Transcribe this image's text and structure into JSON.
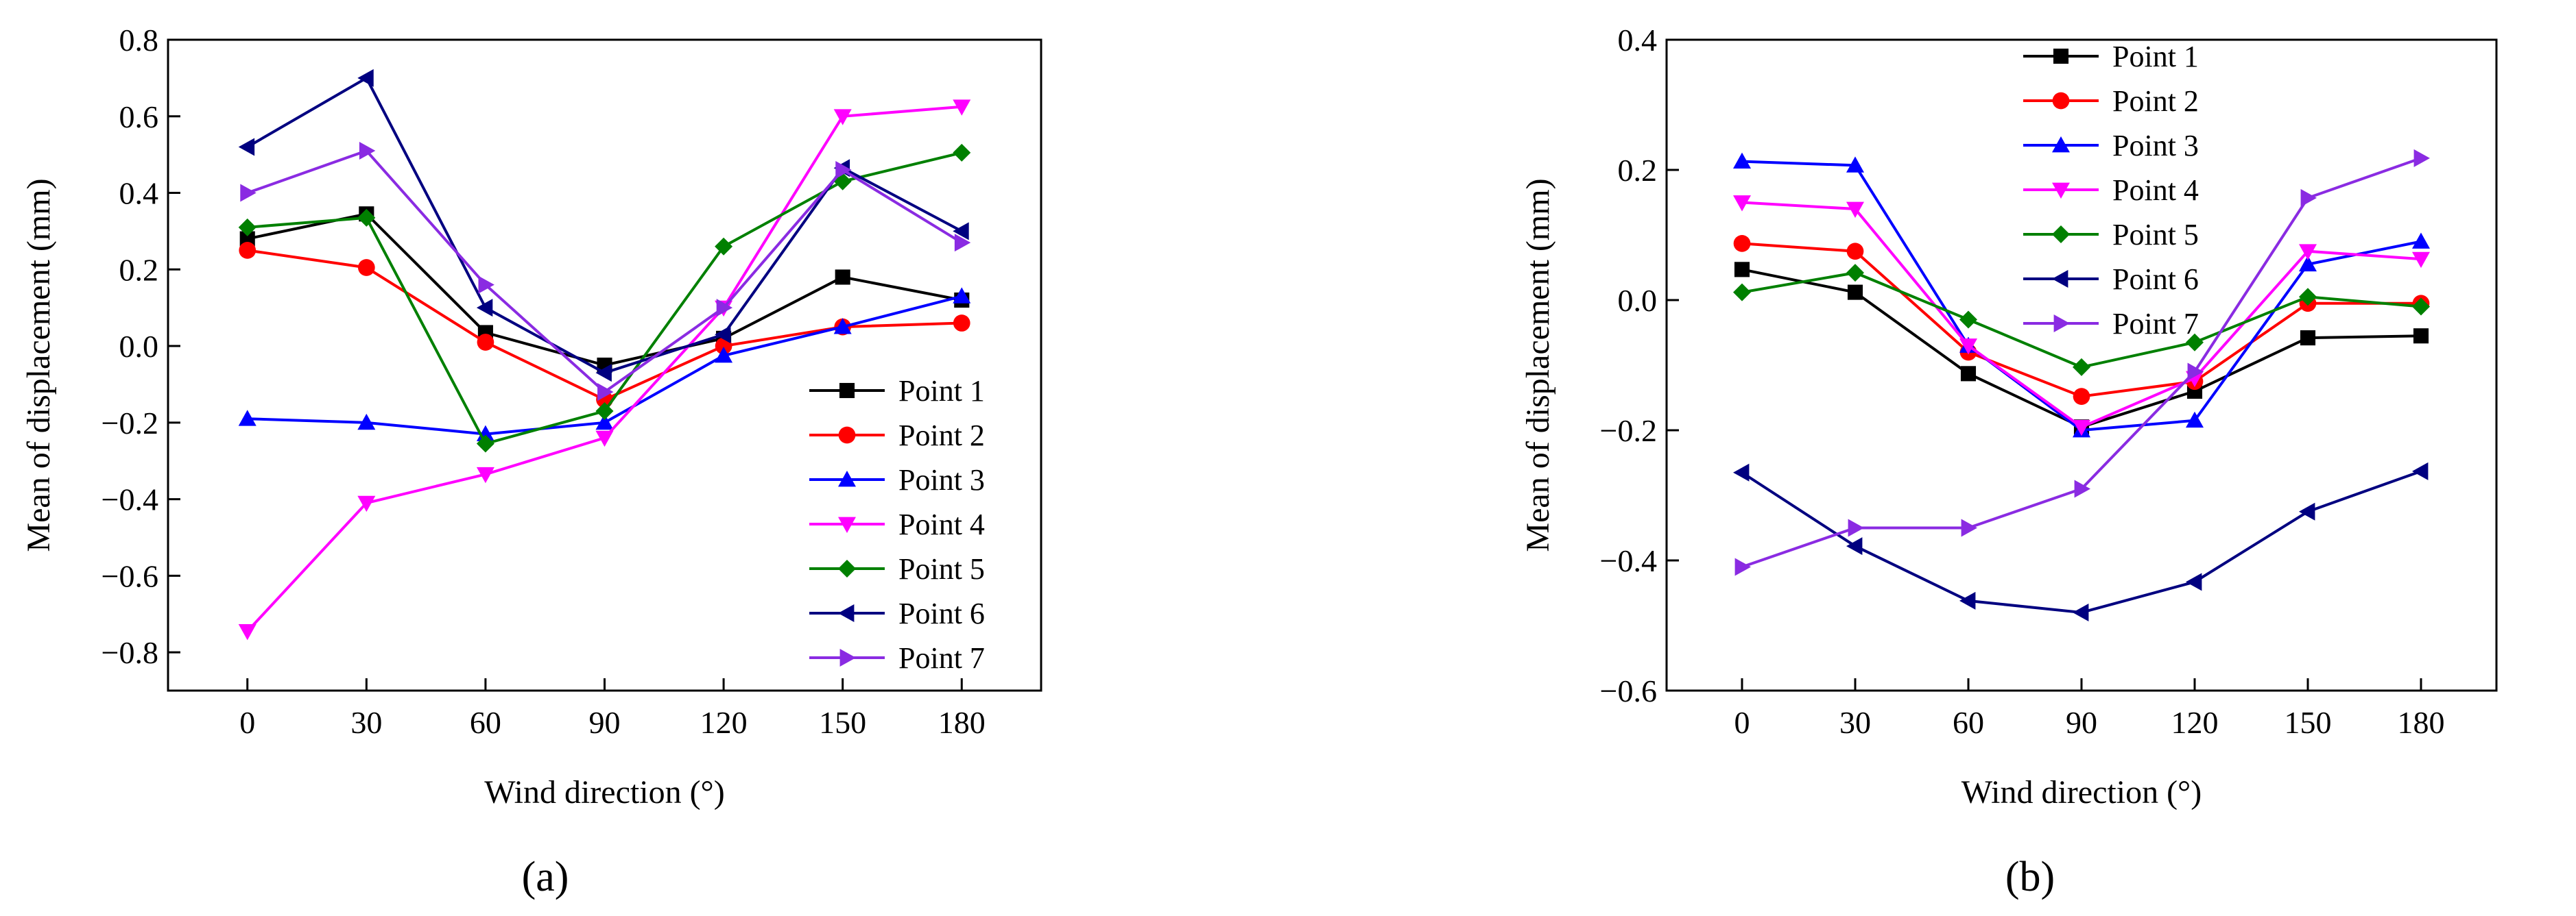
{
  "chart_data": [
    {
      "type": "line",
      "panel_label": "(a)",
      "xlabel": "Wind direction (°)",
      "ylabel": "Mean of displacement (mm)",
      "x": [
        0,
        30,
        60,
        90,
        120,
        150,
        180
      ],
      "xlim": [
        -20,
        200
      ],
      "ylim": [
        -0.9,
        0.8
      ],
      "xticks": [
        0,
        30,
        60,
        90,
        120,
        150,
        180
      ],
      "yticks": [
        -0.8,
        -0.6,
        -0.4,
        -0.2,
        0.0,
        0.2,
        0.4,
        0.6,
        0.8
      ],
      "ytick_labels": [
        "−0.8",
        "−0.6",
        "−0.4",
        "−0.2",
        "0.0",
        "0.2",
        "0.4",
        "0.6",
        "0.8"
      ],
      "legend_position": "bottom-right",
      "series": [
        {
          "name": "Point 1",
          "color": "#000000",
          "marker": "square",
          "values": [
            0.28,
            0.345,
            0.035,
            -0.05,
            0.02,
            0.18,
            0.12
          ]
        },
        {
          "name": "Point 2",
          "color": "#ff0000",
          "marker": "circle",
          "values": [
            0.25,
            0.205,
            0.01,
            -0.14,
            0.0,
            0.05,
            0.06
          ]
        },
        {
          "name": "Point 3",
          "color": "#0000ff",
          "marker": "triangle-up",
          "values": [
            -0.19,
            -0.2,
            -0.23,
            -0.2,
            -0.025,
            0.05,
            0.13
          ]
        },
        {
          "name": "Point 4",
          "color": "#ff00ff",
          "marker": "triangle-down",
          "values": [
            -0.745,
            -0.41,
            -0.335,
            -0.24,
            0.1,
            0.6,
            0.625
          ]
        },
        {
          "name": "Point 5",
          "color": "#008000",
          "marker": "diamond",
          "values": [
            0.31,
            0.335,
            -0.255,
            -0.17,
            0.26,
            0.43,
            0.505
          ]
        },
        {
          "name": "Point 6",
          "color": "#000080",
          "marker": "triangle-left",
          "values": [
            0.52,
            0.7,
            0.1,
            -0.07,
            0.03,
            0.465,
            0.3
          ]
        },
        {
          "name": "Point 7",
          "color": "#8a2be2",
          "marker": "triangle-right",
          "values": [
            0.4,
            0.51,
            0.16,
            -0.12,
            0.1,
            0.46,
            0.27
          ]
        }
      ]
    },
    {
      "type": "line",
      "panel_label": "(b)",
      "xlabel": "Wind direction (°)",
      "ylabel": "Mean of displacement (mm)",
      "x": [
        0,
        30,
        60,
        90,
        120,
        150,
        180
      ],
      "xlim": [
        -20,
        200
      ],
      "ylim": [
        -0.6,
        0.4
      ],
      "xticks": [
        0,
        30,
        60,
        90,
        120,
        150,
        180
      ],
      "yticks": [
        -0.6,
        -0.4,
        -0.2,
        0.0,
        0.2,
        0.4
      ],
      "ytick_labels": [
        "−0.6",
        "−0.4",
        "−0.2",
        "0.0",
        "0.2",
        "0.4"
      ],
      "legend_position": "top-left",
      "series": [
        {
          "name": "Point 1",
          "color": "#000000",
          "marker": "square",
          "values": [
            0.047,
            0.012,
            -0.113,
            -0.195,
            -0.14,
            -0.058,
            -0.055
          ]
        },
        {
          "name": "Point 2",
          "color": "#ff0000",
          "marker": "circle",
          "values": [
            0.087,
            0.075,
            -0.08,
            -0.148,
            -0.125,
            -0.005,
            -0.005
          ]
        },
        {
          "name": "Point 3",
          "color": "#0000ff",
          "marker": "triangle-up",
          "values": [
            0.213,
            0.207,
            -0.07,
            -0.2,
            -0.185,
            0.055,
            0.09
          ]
        },
        {
          "name": "Point 4",
          "color": "#ff00ff",
          "marker": "triangle-down",
          "values": [
            0.15,
            0.14,
            -0.07,
            -0.195,
            -0.12,
            0.075,
            0.063
          ]
        },
        {
          "name": "Point 5",
          "color": "#008000",
          "marker": "diamond",
          "values": [
            0.012,
            0.042,
            -0.03,
            -0.103,
            -0.065,
            0.005,
            -0.01
          ]
        },
        {
          "name": "Point 6",
          "color": "#000080",
          "marker": "triangle-left",
          "values": [
            -0.265,
            -0.378,
            -0.462,
            -0.48,
            -0.433,
            -0.325,
            -0.263
          ]
        },
        {
          "name": "Point 7",
          "color": "#8a2be2",
          "marker": "triangle-right",
          "values": [
            -0.41,
            -0.35,
            -0.35,
            -0.29,
            -0.11,
            0.157,
            0.218
          ]
        }
      ]
    }
  ]
}
